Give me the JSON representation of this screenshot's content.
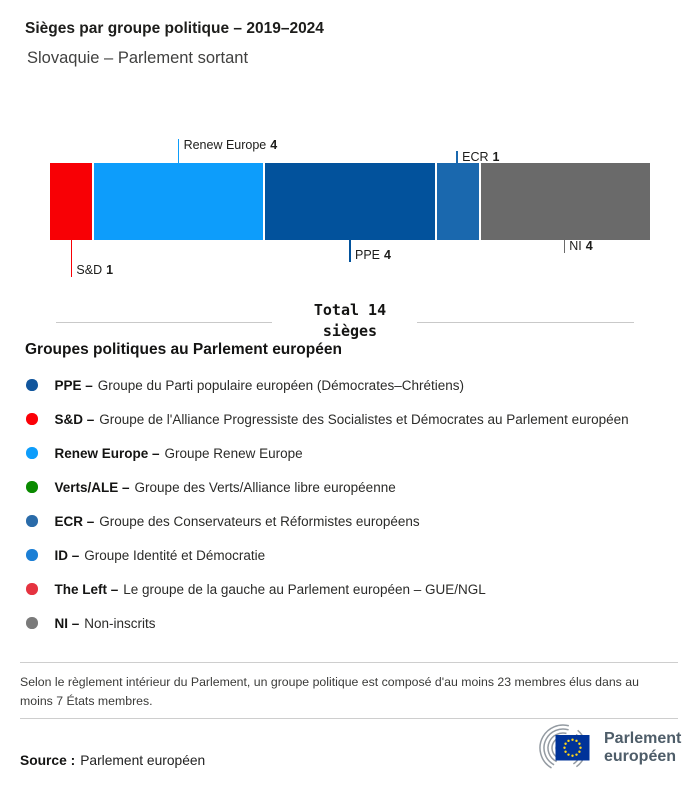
{
  "header": {
    "title": "Sièges par groupe politique – 2019–2024",
    "subtitle": "Slovaquie – Parlement sortant"
  },
  "chart_data": {
    "type": "bar",
    "title": "Sièges par groupe politique – 2019–2024",
    "subtitle": "Slovaquie – Parlement sortant",
    "unit": "sièges",
    "total": 14,
    "total_label_line1": "Total 14",
    "total_label_line2": "sièges",
    "categories": [
      "S&D",
      "Renew Europe",
      "PPE",
      "ECR",
      "NI"
    ],
    "values": [
      1,
      4,
      4,
      1,
      4
    ],
    "segments": [
      {
        "group": "S&D",
        "seats": 1,
        "color": "#f80005",
        "label_side": "below",
        "tick_len": 37
      },
      {
        "group": "Renew Europe",
        "seats": 4,
        "color": "#0d9dfb",
        "label_side": "above",
        "tick_len": 24
      },
      {
        "group": "PPE",
        "seats": 4,
        "color": "#02529c",
        "label_side": "below",
        "tick_len": 22
      },
      {
        "group": "ECR",
        "seats": 1,
        "color": "#1a68ae",
        "label_side": "above",
        "tick_len": 12
      },
      {
        "group": "NI",
        "seats": 4,
        "color": "#6a6a6a",
        "label_side": "below",
        "tick_len": 13
      }
    ]
  },
  "legend": {
    "heading": "Groupes politiques au Parlement européen",
    "items": [
      {
        "abbr": "PPE –",
        "description": "Groupe du Parti populaire européen (Démocrates–Chrétiens)",
        "color": "#11569d"
      },
      {
        "abbr": "S&D –",
        "description": "Groupe de l'Alliance Progressiste des Socialistes et Démocrates au Parlement européen",
        "color": "#fb0007"
      },
      {
        "abbr": "Renew Europe –",
        "description": "Groupe Renew Europe",
        "color": "#0d9dfb"
      },
      {
        "abbr": "Verts/ALE –",
        "description": "Groupe des Verts/Alliance libre européenne",
        "color": "#0a8a00"
      },
      {
        "abbr": "ECR –",
        "description": "Groupe des Conservateurs et Réformistes européens",
        "color": "#2a6ba9"
      },
      {
        "abbr": "ID –",
        "description": "Groupe Identité et Démocratie",
        "color": "#1c7fd5"
      },
      {
        "abbr": "The Left –",
        "description": "Le groupe de la gauche au Parlement européen – GUE/NGL",
        "color": "#e53340"
      },
      {
        "abbr": "NI –",
        "description": "Non-inscrits",
        "color": "#7a7a7a"
      }
    ]
  },
  "footnote": "Selon le règlement intérieur du Parlement, un groupe politique est composé d'au moins 23 membres élus dans au moins 7 États membres.",
  "source": {
    "label": "Source :",
    "value": "Parlement européen"
  },
  "logo": {
    "line1": "Parlement",
    "line2": "européen"
  }
}
